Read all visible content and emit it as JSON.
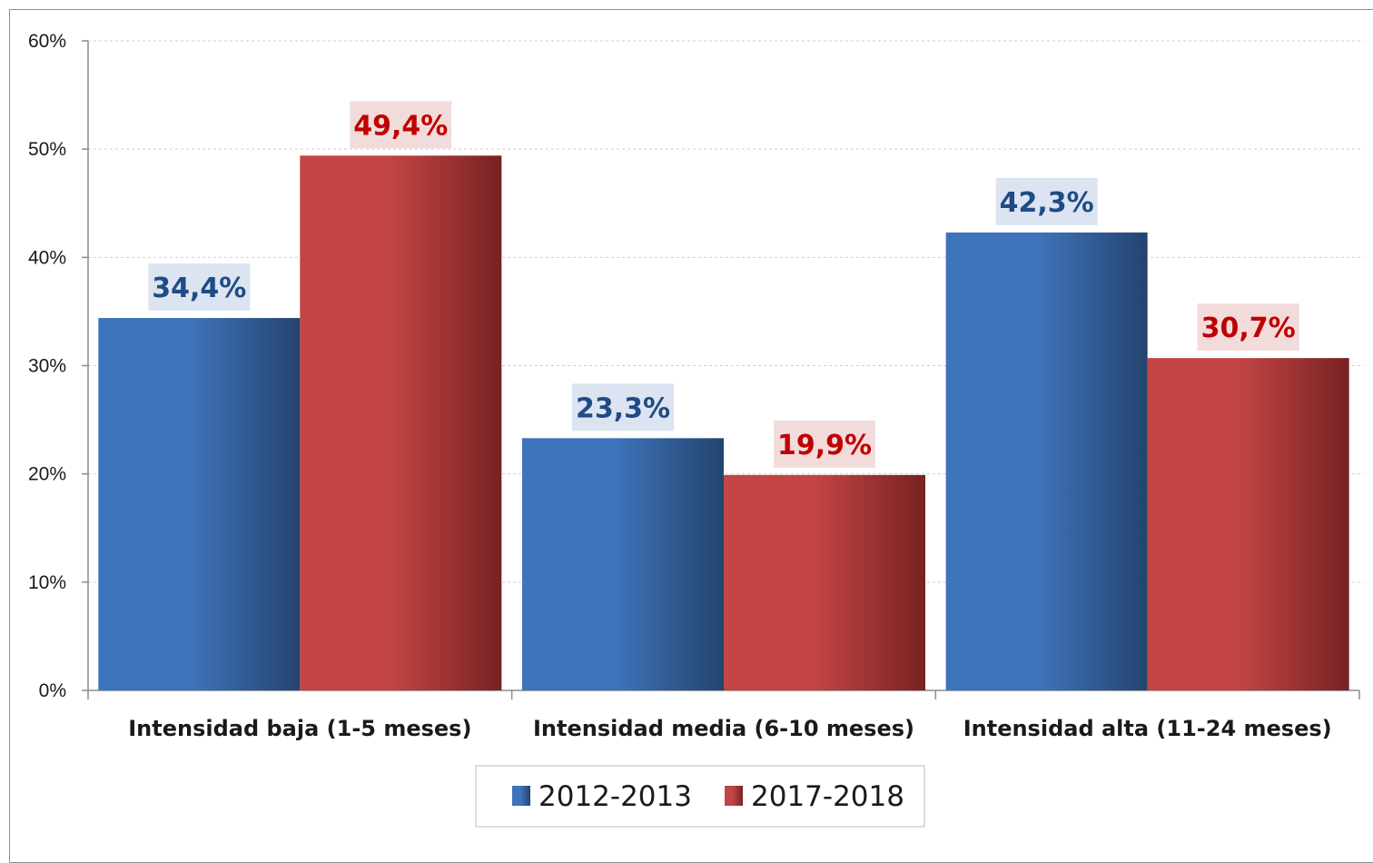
{
  "chart_data": {
    "type": "bar",
    "categories": [
      "Intensidad baja (1-5 meses)",
      "Intensidad media (6-10 meses)",
      "Intensidad alta (11-24 meses)"
    ],
    "series": [
      {
        "name": "2012-2013",
        "values": [
          34.4,
          23.3,
          42.3
        ],
        "labels": [
          "34,4%",
          "23,3%",
          "42,3%"
        ],
        "color": "#3e74bb",
        "color_dark": "#24446f",
        "label_color": "#1f4b86",
        "label_bg": "#dbe4f0"
      },
      {
        "name": "2017-2018",
        "values": [
          49.4,
          19.9,
          30.7
        ],
        "labels": [
          "49,4%",
          "19,9%",
          "30,7%"
        ],
        "color": "#c34444",
        "color_dark": "#772222",
        "label_color": "#c00000",
        "label_bg": "#f2dcdb"
      }
    ],
    "y_ticks": [
      "0%",
      "10%",
      "20%",
      "30%",
      "40%",
      "50%",
      "60%"
    ],
    "ylim": [
      0,
      60
    ],
    "grid": true,
    "legend_position": "bottom"
  }
}
